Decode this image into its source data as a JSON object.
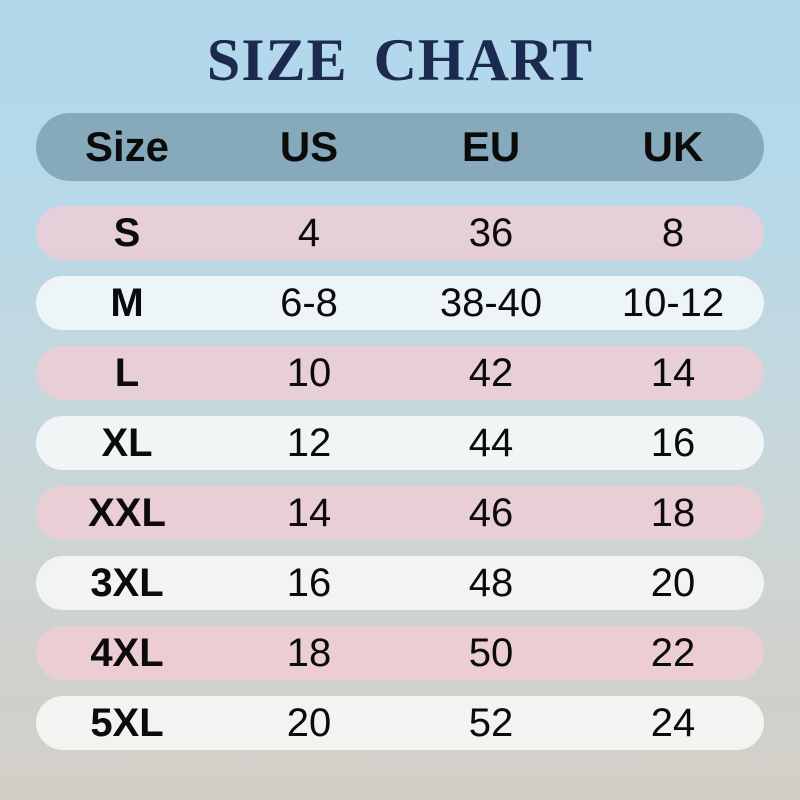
{
  "title": "SIZE CHART",
  "colors": {
    "title_text": "#1b2a4e",
    "bg_top": "#b2d8ec",
    "bg_mid": "#c3d8de",
    "bg_bottom": "#d2cfc8",
    "header_bg": "#86aabc",
    "row_pink": "#f1ccd4cc",
    "row_light": "#ffffffbd",
    "cell_text": "#0b0b0b"
  },
  "chart_data": {
    "type": "table",
    "title": "SIZE CHART",
    "columns": [
      "Size",
      "US",
      "EU",
      "UK"
    ],
    "rows": [
      [
        "S",
        "4",
        "36",
        "8"
      ],
      [
        "M",
        "6-8",
        "38-40",
        "10-12"
      ],
      [
        "L",
        "10",
        "42",
        "14"
      ],
      [
        "XL",
        "12",
        "44",
        "16"
      ],
      [
        "XXL",
        "14",
        "46",
        "18"
      ],
      [
        "3XL",
        "16",
        "48",
        "20"
      ],
      [
        "4XL",
        "18",
        "50",
        "22"
      ],
      [
        "5XL",
        "20",
        "52",
        "24"
      ]
    ]
  }
}
